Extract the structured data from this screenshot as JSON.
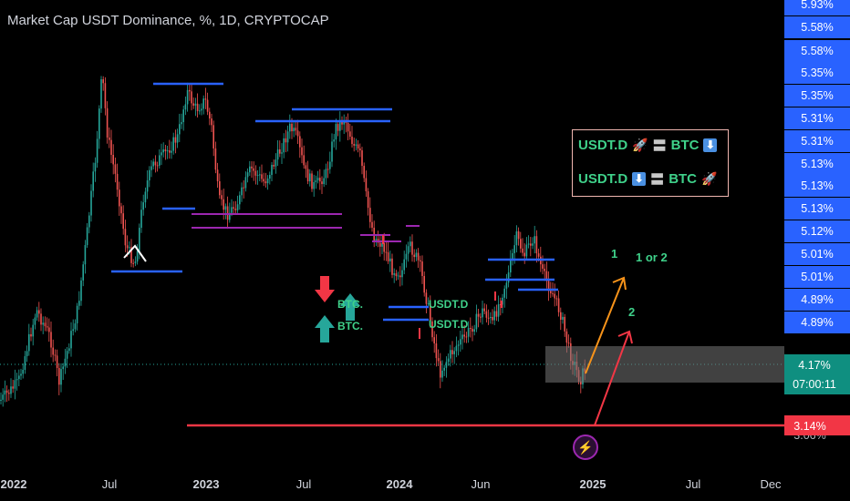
{
  "chart_title": "Market Cap USDT Dominance, %, 1D, CRYPTOCAP",
  "chart_data": {
    "type": "line",
    "title": "Market Cap USDT Dominance, %, 1D, CRYPTOCAP",
    "x_tick_labels": [
      "2022",
      "Jul",
      "2023",
      "Jul",
      "2024",
      "Jun",
      "2025",
      "Jul",
      "Dec"
    ],
    "y_axis_labels": [
      "5.93%",
      "5.58%",
      "5.58%",
      "5.35%",
      "5.35%",
      "5.31%",
      "5.31%",
      "5.13%",
      "5.13%",
      "5.13%",
      "5.12%",
      "5.01%",
      "5.01%",
      "4.89%",
      "4.89%",
      "3.14%"
    ],
    "y_axis_label_colors": [
      "#2962ff",
      "#f23645"
    ],
    "price_label": "4.17%",
    "countdown_label": "07:00:11",
    "support_label": "3.14%",
    "bottom_axis_label": "3.06%",
    "path_labels": [
      "1",
      "1 or 2",
      "2"
    ],
    "arrow_labels": [
      "BTC.",
      "BTC.",
      "USDT.D",
      "USDT.D"
    ],
    "colors": {
      "candle_up": "#26a69a",
      "candle_down": "#ef5350",
      "resistance_lines": "#2962ff",
      "range_lines": "#9c27b0",
      "support_line": "#f23645",
      "path_orange": "#f7931a",
      "path_red": "#f23645"
    }
  },
  "legend": {
    "row1": {
      "left": "USDT.D",
      "left_emoji": "🚀",
      "sep": "〓",
      "right": "BTC",
      "right_icon": "⬇"
    },
    "row2": {
      "left": "USDT.D",
      "left_icon": "⬇",
      "sep": "〓",
      "right": "BTC",
      "right_emoji": "🚀"
    }
  },
  "lightning_icon": "⚡"
}
